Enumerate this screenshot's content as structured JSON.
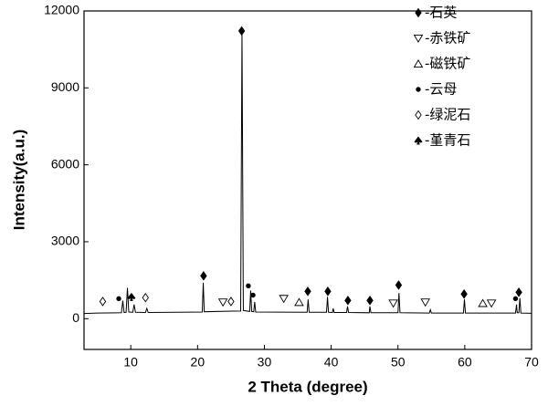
{
  "chart_data": {
    "type": "line",
    "color": "#000000",
    "x_label": "2 Theta (degree)",
    "y_label": "Intensity(a.u.)",
    "xlim": [
      3,
      70
    ],
    "ylim": [
      -1200,
      12000
    ],
    "xticks": [
      10,
      20,
      30,
      40,
      50,
      60,
      70
    ],
    "yticks": [
      0,
      3000,
      6000,
      9000,
      12000
    ],
    "x": [
      3,
      5,
      8.6,
      8.8,
      9.0,
      9.3,
      9.5,
      9.7,
      10.3,
      10.5,
      10.7,
      12.2,
      12.4,
      12.6,
      20.7,
      20.85,
      21.0,
      26.45,
      26.65,
      26.85,
      27.8,
      27.95,
      28.1,
      28.4,
      28.55,
      28.7,
      36.4,
      36.55,
      36.7,
      39.3,
      39.45,
      39.6,
      40.2,
      40.3,
      40.45,
      42.3,
      42.45,
      42.6,
      45.7,
      45.8,
      45.95,
      50.0,
      50.15,
      50.3,
      54.7,
      54.85,
      55.0,
      59.8,
      59.95,
      60.1,
      67.6,
      67.75,
      67.85,
      68.1,
      68.25,
      68.4,
      70
    ],
    "values": [
      200,
      220,
      230,
      700,
      240,
      250,
      1200,
      260,
      250,
      550,
      250,
      240,
      400,
      240,
      260,
      1400,
      270,
      300,
      11200,
      320,
      280,
      1100,
      280,
      270,
      650,
      260,
      250,
      750,
      250,
      250,
      850,
      250,
      240,
      400,
      240,
      240,
      480,
      240,
      230,
      480,
      230,
      230,
      1000,
      230,
      220,
      350,
      220,
      220,
      750,
      220,
      220,
      550,
      230,
      230,
      800,
      220,
      210
    ],
    "markers": [
      {
        "name": "-石英",
        "symbol": "diamond-filled",
        "points": [
          {
            "x": 20.9,
            "y": 1670
          },
          {
            "x": 26.6,
            "y": 11220
          },
          {
            "x": 36.5,
            "y": 1065
          },
          {
            "x": 39.5,
            "y": 1065
          },
          {
            "x": 42.5,
            "y": 710
          },
          {
            "x": 45.8,
            "y": 710
          },
          {
            "x": 50.1,
            "y": 1310
          },
          {
            "x": 59.9,
            "y": 960
          },
          {
            "x": 68.1,
            "y": 1030
          }
        ]
      },
      {
        "name": "-赤铁矿",
        "symbol": "triangle-down-open",
        "points": [
          {
            "x": 23.8,
            "y": 640
          },
          {
            "x": 32.9,
            "y": 780
          },
          {
            "x": 49.3,
            "y": 600
          },
          {
            "x": 54.1,
            "y": 640
          },
          {
            "x": 64.0,
            "y": 600
          }
        ]
      },
      {
        "name": "-磁铁矿",
        "symbol": "triangle-up-open",
        "points": [
          {
            "x": 35.2,
            "y": 640
          },
          {
            "x": 62.7,
            "y": 600
          }
        ]
      },
      {
        "name": "-云母",
        "symbol": "circle-filled",
        "points": [
          {
            "x": 8.2,
            "y": 780
          },
          {
            "x": 27.6,
            "y": 1280
          },
          {
            "x": 28.3,
            "y": 920
          },
          {
            "x": 67.6,
            "y": 780
          }
        ]
      },
      {
        "name": "-绿泥石",
        "symbol": "diamond-open",
        "points": [
          {
            "x": 5.8,
            "y": 670
          },
          {
            "x": 12.2,
            "y": 820
          },
          {
            "x": 25.0,
            "y": 670
          }
        ]
      },
      {
        "name": "-堇青石",
        "symbol": "spade",
        "points": [
          {
            "x": 10.1,
            "y": 850
          }
        ]
      }
    ]
  }
}
